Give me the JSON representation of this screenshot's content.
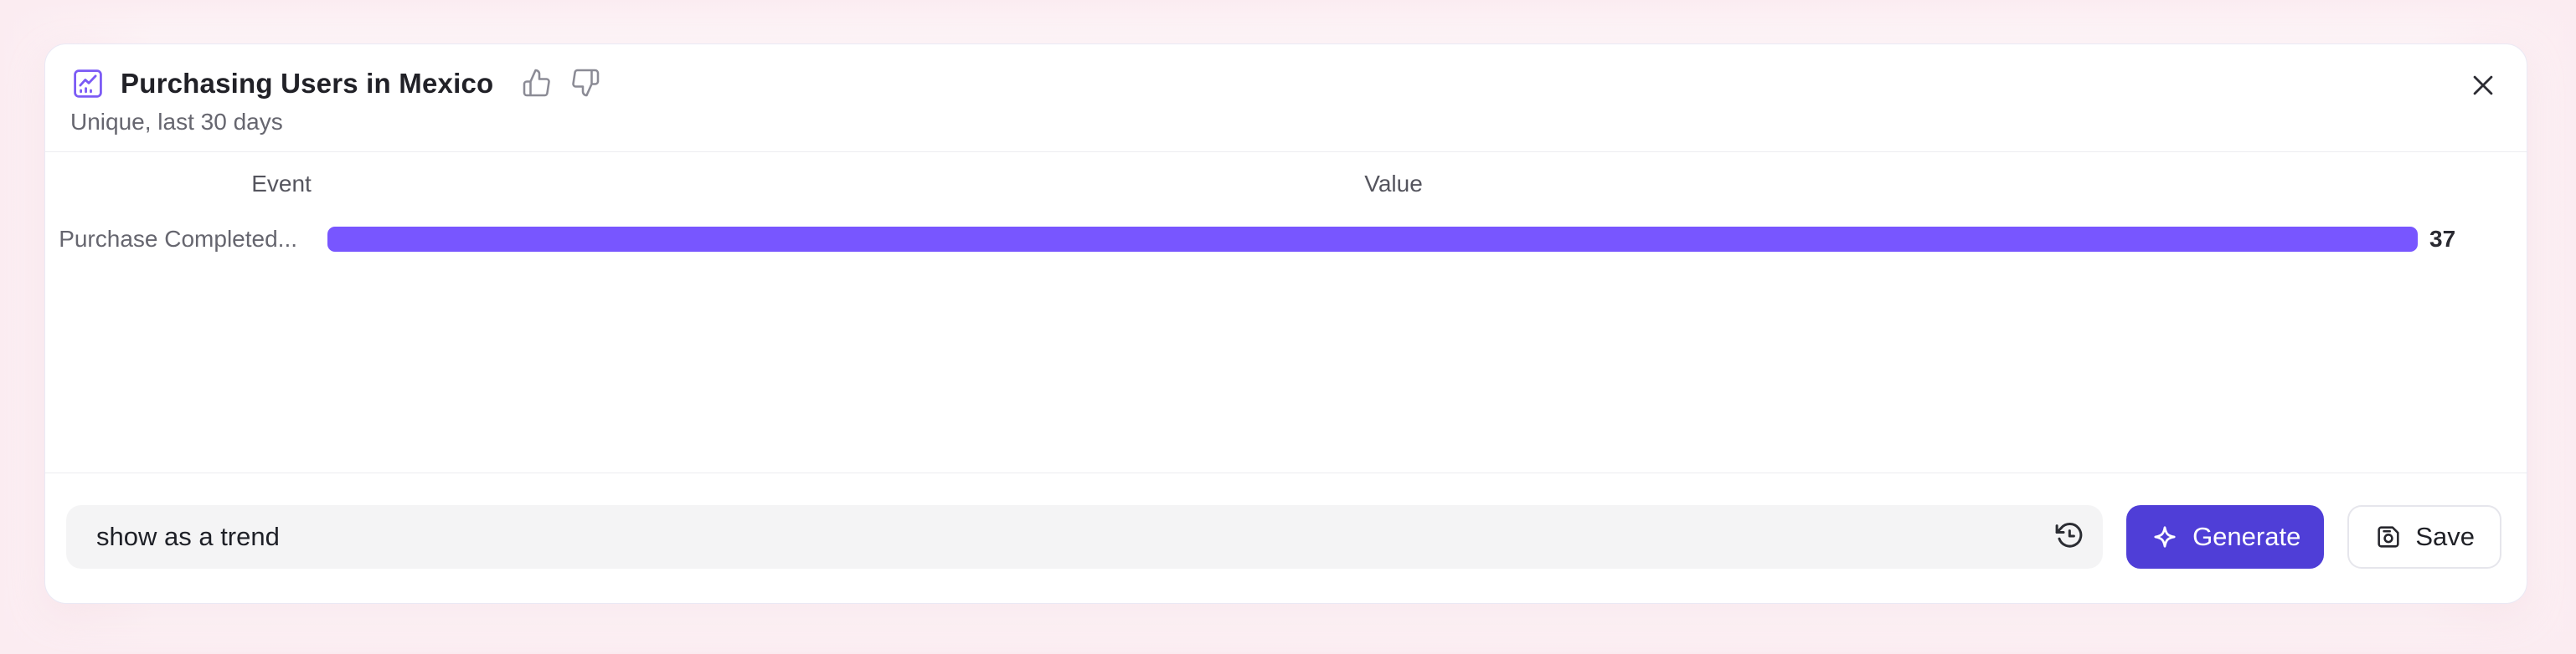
{
  "header": {
    "title": "Purchasing Users in Mexico",
    "subtitle": "Unique, last 30 days"
  },
  "chart_data": {
    "type": "bar",
    "orientation": "horizontal",
    "title": "Purchasing Users in Mexico",
    "subtitle": "Unique, last 30 days",
    "column_headers": [
      "Event",
      "Value"
    ],
    "categories": [
      "Purchase Completed..."
    ],
    "values": [
      37
    ],
    "value_axis_max": 37,
    "bar_color": "#7856ff",
    "grid": "off",
    "legend": "off"
  },
  "footer": {
    "prompt_input": {
      "value": "show as a trend"
    },
    "generate_button": {
      "label": "Generate"
    },
    "save_button": {
      "label": "Save"
    }
  },
  "colors": {
    "bar": "#7856ff",
    "generate_button_bg": "#4f3ed7",
    "background_glow": "#fbecf1",
    "card_border": "#eae9f5"
  }
}
